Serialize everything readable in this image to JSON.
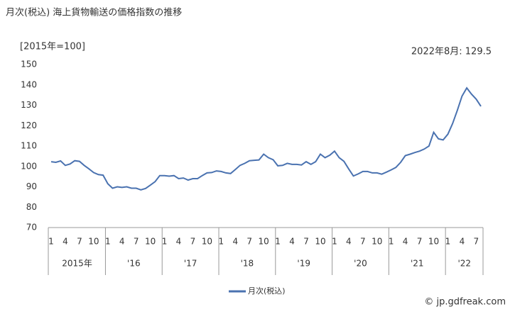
{
  "chart_data": {
    "type": "line",
    "title": "月次(税込) 海上貨物輸送の価格指数の推移",
    "unit_label": "[2015年=100]",
    "annotation": "2022年8月: 129.5",
    "watermark": "© jp.gdfreak.com",
    "categories": [
      "1",
      null,
      null,
      "4",
      null,
      null,
      "7",
      null,
      null,
      "10",
      null,
      null,
      "1",
      null,
      null,
      "4",
      null,
      null,
      "7",
      null,
      null,
      "10",
      null,
      null,
      "1",
      null,
      null,
      "4",
      null,
      null,
      "7",
      null,
      null,
      "10",
      null,
      null,
      "1",
      null,
      null,
      "4",
      null,
      null,
      "7",
      null,
      null,
      "10",
      null,
      null,
      "1",
      null,
      null,
      "4",
      null,
      null,
      "7",
      null,
      null,
      "10",
      null,
      null,
      "1",
      null,
      null,
      "4",
      null,
      null,
      "7",
      null,
      null,
      "10",
      null,
      null,
      "1",
      null,
      null,
      "4",
      null,
      null,
      "7",
      null,
      null,
      "10",
      null,
      null,
      "1",
      null,
      null,
      "4",
      null,
      null,
      "7",
      null
    ],
    "year_labels": [
      "2015年",
      "'16",
      "'17",
      "'18",
      "'19",
      "'20",
      "'21",
      "'22"
    ],
    "series": [
      {
        "name": "月次(税込)",
        "color": "#4a72b0",
        "values": [
          102.3,
          102,
          102.7,
          100.5,
          101.2,
          102.8,
          102.5,
          100.5,
          98.8,
          97,
          96,
          95.7,
          91.5,
          89.3,
          90,
          89.7,
          90,
          89.3,
          89.3,
          88.5,
          89.2,
          90.8,
          92.5,
          95.5,
          95.5,
          95.2,
          95.5,
          94,
          94.3,
          93.3,
          94,
          94,
          95.5,
          96.8,
          97,
          97.8,
          97.5,
          96.8,
          96.5,
          98.5,
          100.5,
          101.5,
          102.8,
          103,
          103.2,
          106,
          104.3,
          103.3,
          100.3,
          100.5,
          101.5,
          101,
          101,
          100.7,
          102.3,
          101,
          102.3,
          106,
          104.3,
          105.5,
          107.5,
          104.3,
          102.5,
          98.8,
          95.3,
          96.3,
          97.5,
          97.5,
          96.8,
          96.8,
          96.2,
          97.2,
          98.3,
          99.5,
          102,
          105.3,
          106,
          106.8,
          107.5,
          108.5,
          110,
          116.7,
          113.5,
          113,
          115.8,
          121,
          127.5,
          134.5,
          138.5,
          135.5,
          133,
          129.5
        ]
      }
    ],
    "ylim": [
      70,
      150
    ],
    "yticks": [
      70,
      80,
      90,
      100,
      110,
      120,
      130,
      140,
      150
    ],
    "grid": false
  }
}
